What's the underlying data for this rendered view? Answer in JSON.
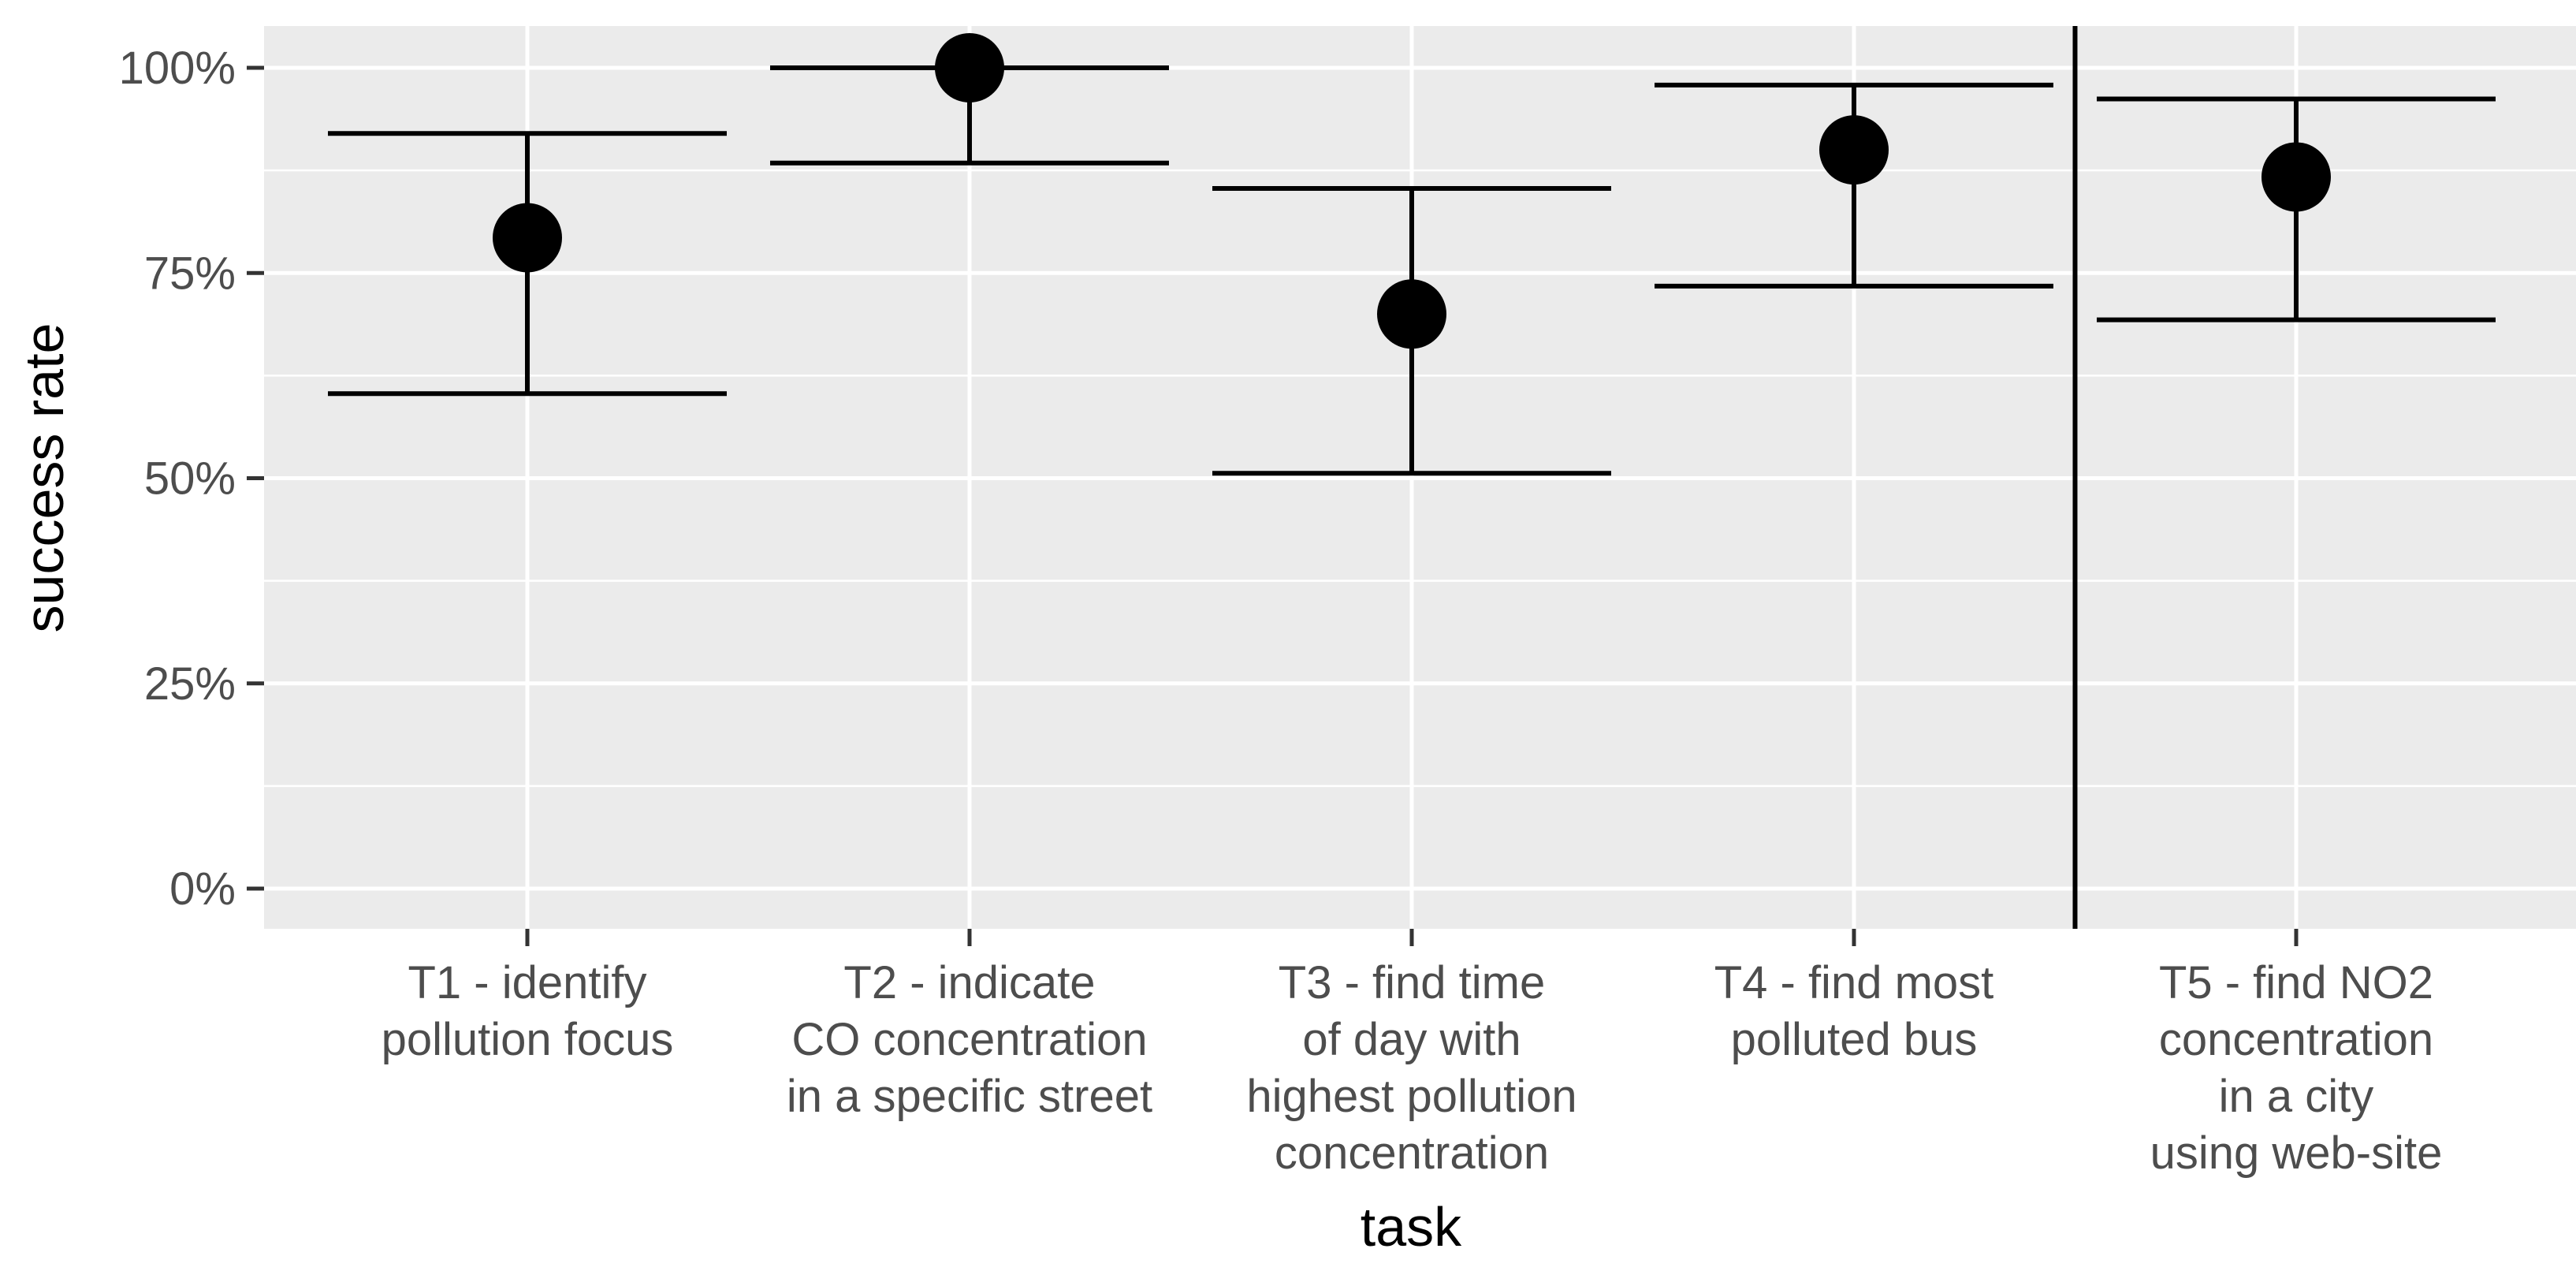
{
  "chart_data": {
    "type": "scatter",
    "subtype": "point-with-error-bars",
    "title": "",
    "xlabel": "task",
    "ylabel": "success rate",
    "ylim": [
      -0.05,
      1.05
    ],
    "y_ticks": [
      {
        "value": 0,
        "label": "0%"
      },
      {
        "value": 0.25,
        "label": "25%"
      },
      {
        "value": 0.5,
        "label": "50%"
      },
      {
        "value": 0.75,
        "label": "75%"
      },
      {
        "value": 1.0,
        "label": "100%"
      }
    ],
    "categories": [
      [
        "T1 - identify",
        "pollution focus"
      ],
      [
        "T2 - indicate",
        "CO concentration",
        "in a specific street"
      ],
      [
        "T3 - find time",
        "of day with",
        "highest pollution",
        "concentration"
      ],
      [
        "T4 - find most",
        "polluted bus"
      ],
      [
        "T5 - find NO2",
        "concentration",
        "in a city",
        "using web-site"
      ]
    ],
    "points": [
      {
        "value": 0.793,
        "lower": 0.603,
        "upper": 0.92
      },
      {
        "value": 1.0,
        "lower": 0.884,
        "upper": 1.0
      },
      {
        "value": 0.7,
        "lower": 0.506,
        "upper": 0.853
      },
      {
        "value": 0.9,
        "lower": 0.734,
        "upper": 0.979
      },
      {
        "value": 0.867,
        "lower": 0.693,
        "upper": 0.962
      }
    ],
    "separator_after_category": 4,
    "grid": true
  },
  "colors": {
    "panel": "#ebebeb",
    "grid": "#ffffff",
    "mark": "#000000",
    "tick_text": "#4d4d4d",
    "tick_mark": "#333333"
  }
}
